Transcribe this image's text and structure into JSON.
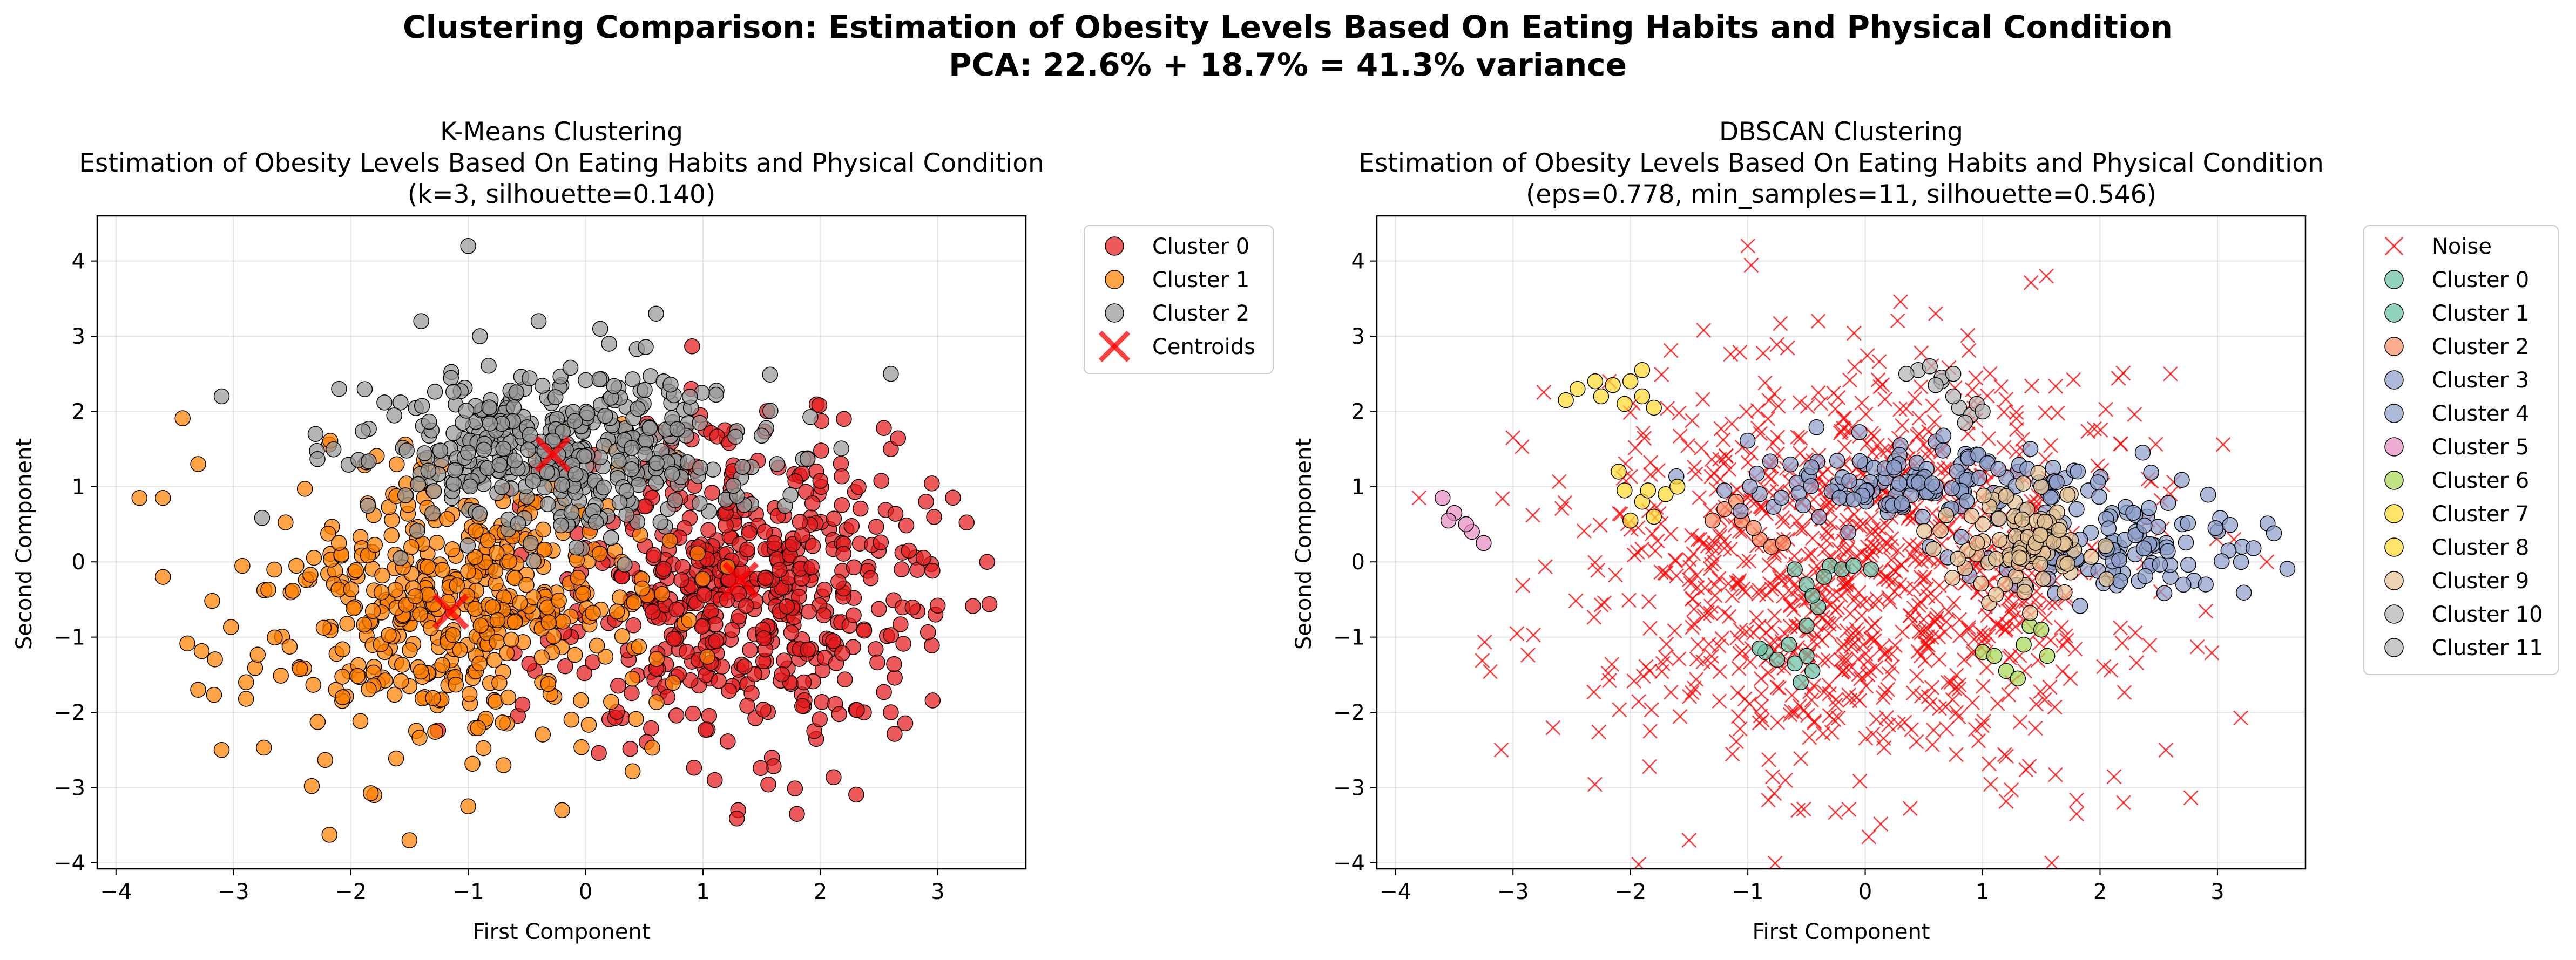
{
  "figure": {
    "title_line1": "Clustering Comparison: Estimation of Obesity Levels Based On Eating Habits and Physical Condition",
    "title_line2": "PCA: 22.6% + 18.7% = 41.3% variance"
  },
  "chart_data": [
    {
      "type": "scatter",
      "title": "K-Means Clustering",
      "subtitle": "Estimation of Obesity Levels Based On Eating Habits and Physical Condition",
      "params": "(k=3, silhouette=0.140)",
      "xlabel": "First Component",
      "ylabel": "Second Component",
      "xlim": [
        -4.16,
        3.75
      ],
      "ylim": [
        -4.08,
        4.6
      ],
      "xticks": [
        -4,
        -3,
        -2,
        -1,
        0,
        1,
        2,
        3
      ],
      "yticks": [
        -4,
        -3,
        -2,
        -1,
        0,
        1,
        2,
        3,
        4
      ],
      "grid": true,
      "legend_position": "outside-right-top",
      "series": [
        {
          "name": "Cluster 0",
          "color": "#e41a1c",
          "marker": "circle",
          "center": [
            1.35,
            -0.3
          ],
          "spread": [
            0.8,
            1.05
          ],
          "n": 520,
          "points": [
            [
              3.42,
              0.0
            ],
            [
              2.6,
              -2.0
            ],
            [
              2.98,
              -0.7
            ],
            [
              2.2,
              1.9
            ],
            [
              1.3,
              -3.3
            ],
            [
              1.8,
              -3.35
            ],
            [
              2.6,
              1.5
            ],
            [
              0.9,
              2.3
            ],
            [
              2.9,
              0.8
            ],
            [
              1.1,
              -2.9
            ]
          ]
        },
        {
          "name": "Cluster 1",
          "color": "#ff7f00",
          "marker": "circle",
          "center": [
            -1.15,
            -0.6
          ],
          "spread": [
            0.82,
            0.95
          ],
          "n": 470,
          "points": [
            [
              -3.8,
              0.85
            ],
            [
              -3.6,
              0.85
            ],
            [
              -3.1,
              -2.5
            ],
            [
              -1.5,
              -3.7
            ],
            [
              -1.0,
              -3.25
            ],
            [
              -1.8,
              -3.1
            ],
            [
              -0.2,
              -3.3
            ],
            [
              -3.3,
              1.3
            ],
            [
              -3.6,
              -0.2
            ],
            [
              -3.3,
              -1.7
            ]
          ]
        },
        {
          "name": "Cluster 2",
          "color": "#999999",
          "marker": "circle",
          "center": [
            -0.2,
            1.45
          ],
          "spread": [
            0.85,
            0.55
          ],
          "n": 430,
          "points": [
            [
              -1.0,
              4.2
            ],
            [
              -2.1,
              2.3
            ],
            [
              -1.4,
              3.2
            ],
            [
              -0.4,
              3.2
            ],
            [
              0.6,
              3.3
            ],
            [
              2.6,
              2.5
            ],
            [
              -3.1,
              2.2
            ],
            [
              -2.3,
              1.7
            ],
            [
              -0.9,
              3.0
            ],
            [
              0.2,
              2.9
            ]
          ]
        }
      ],
      "centroids": {
        "name": "Centroids",
        "color": "#ff0000",
        "marker": "x",
        "points": [
          [
            -0.28,
            1.43
          ],
          [
            1.32,
            -0.24
          ],
          [
            -1.15,
            -0.66
          ]
        ]
      }
    },
    {
      "type": "scatter",
      "title": "DBSCAN Clustering",
      "subtitle": "Estimation of Obesity Levels Based On Eating Habits and Physical Condition",
      "params": "(eps=0.778, min_samples=11, silhouette=0.546)",
      "xlabel": "First Component",
      "ylabel": "Second Component",
      "xlim": [
        -4.16,
        3.75
      ],
      "ylim": [
        -4.08,
        4.6
      ],
      "xticks": [
        -4,
        -3,
        -2,
        -1,
        0,
        1,
        2,
        3
      ],
      "yticks": [
        -4,
        -3,
        -2,
        -1,
        0,
        1,
        2,
        3,
        4
      ],
      "grid": true,
      "legend_position": "outside-right-top",
      "noise": {
        "name": "Noise",
        "color": "#ff0000",
        "marker": "x",
        "center": [
          0.0,
          -0.1
        ],
        "spread": [
          1.2,
          1.35
        ],
        "n": 1030,
        "points": [
          [
            -1.0,
            4.2
          ],
          [
            3.42,
            0.0
          ],
          [
            -1.5,
            -3.7
          ],
          [
            1.8,
            -3.35
          ],
          [
            2.6,
            2.5
          ],
          [
            -3.8,
            0.85
          ],
          [
            -3.1,
            -2.5
          ],
          [
            0.6,
            3.3
          ],
          [
            -0.4,
            3.2
          ],
          [
            2.2,
            -3.2
          ]
        ]
      },
      "clusters": [
        {
          "name": "Cluster 0",
          "color": "#66c2a5",
          "marker": "circle",
          "points": [
            [
              -0.6,
              -0.1
            ],
            [
              -0.5,
              -0.3
            ],
            [
              -0.3,
              -0.05
            ],
            [
              -0.4,
              -0.6
            ],
            [
              -0.5,
              -0.85
            ],
            [
              -0.2,
              -0.1
            ],
            [
              -0.1,
              -0.05
            ],
            [
              0.05,
              -0.1
            ],
            [
              -0.35,
              -0.2
            ],
            [
              -0.45,
              -0.45
            ]
          ]
        },
        {
          "name": "Cluster 1",
          "color": "#66c2a5",
          "marker": "circle",
          "points": [
            [
              -0.85,
              -1.2
            ],
            [
              -0.75,
              -1.3
            ],
            [
              -0.55,
              -1.6
            ],
            [
              -0.5,
              -1.25
            ],
            [
              -0.65,
              -1.1
            ],
            [
              -0.9,
              -1.15
            ],
            [
              -0.45,
              -1.45
            ],
            [
              -0.6,
              -1.35
            ]
          ]
        },
        {
          "name": "Cluster 2",
          "color": "#fc8d62",
          "marker": "circle",
          "points": [
            [
              -1.1,
              0.8
            ],
            [
              -1.05,
              0.55
            ],
            [
              -0.9,
              0.3
            ],
            [
              -1.3,
              0.55
            ],
            [
              -0.8,
              0.2
            ],
            [
              -0.95,
              0.45
            ],
            [
              -1.2,
              0.7
            ],
            [
              -0.7,
              0.25
            ]
          ]
        },
        {
          "name": "Cluster 3",
          "color": "#8da0cb",
          "marker": "circle",
          "center": [
            0.6,
            1.05
          ],
          "spread": [
            0.75,
            0.28
          ],
          "n": 140,
          "points": [
            [
              -1.2,
              0.95
            ],
            [
              -0.9,
              0.9
            ],
            [
              -0.5,
              1.15
            ],
            [
              0.0,
              1.3
            ],
            [
              0.3,
              1.55
            ],
            [
              0.6,
              1.6
            ],
            [
              0.9,
              1.1
            ],
            [
              1.3,
              1.2
            ],
            [
              1.6,
              1.25
            ],
            [
              1.9,
              0.95
            ]
          ]
        },
        {
          "name": "Cluster 4",
          "color": "#8da0cb",
          "marker": "circle",
          "center": [
            2.1,
            0.15
          ],
          "spread": [
            0.55,
            0.3
          ],
          "n": 95,
          "points": [
            [
              1.6,
              0.0
            ],
            [
              1.9,
              -0.1
            ],
            [
              2.3,
              0.1
            ],
            [
              2.6,
              -0.2
            ],
            [
              2.8,
              -0.25
            ],
            [
              2.9,
              -0.3
            ],
            [
              2.4,
              0.6
            ],
            [
              2.1,
              0.65
            ],
            [
              1.8,
              0.7
            ],
            [
              2.7,
              0.5
            ]
          ]
        },
        {
          "name": "Cluster 5",
          "color": "#e78ac3",
          "marker": "circle",
          "points": [
            [
              -3.6,
              0.85
            ],
            [
              -3.5,
              0.65
            ],
            [
              -3.35,
              0.4
            ],
            [
              -3.25,
              0.25
            ],
            [
              -3.55,
              0.55
            ],
            [
              -3.4,
              0.5
            ]
          ]
        },
        {
          "name": "Cluster 6",
          "color": "#a6d854",
          "marker": "circle",
          "points": [
            [
              1.0,
              -1.2
            ],
            [
              1.2,
              -1.45
            ],
            [
              1.3,
              -1.55
            ],
            [
              1.4,
              -0.85
            ],
            [
              1.5,
              -0.9
            ],
            [
              1.55,
              -1.25
            ],
            [
              1.35,
              -1.1
            ],
            [
              1.1,
              -1.25
            ]
          ]
        },
        {
          "name": "Cluster 7",
          "color": "#ffd92f",
          "marker": "circle",
          "points": [
            [
              -2.45,
              2.3
            ],
            [
              -2.3,
              2.4
            ],
            [
              -2.15,
              2.35
            ],
            [
              -2.05,
              2.1
            ],
            [
              -1.9,
              2.2
            ],
            [
              -1.8,
              2.05
            ],
            [
              -2.55,
              2.15
            ],
            [
              -2.25,
              2.2
            ],
            [
              -2.0,
              2.4
            ],
            [
              -1.9,
              2.55
            ]
          ]
        },
        {
          "name": "Cluster 8",
          "color": "#ffd92f",
          "marker": "circle",
          "points": [
            [
              -2.1,
              1.2
            ],
            [
              -2.05,
              0.95
            ],
            [
              -1.9,
              0.8
            ],
            [
              -1.8,
              0.6
            ],
            [
              -1.7,
              0.9
            ],
            [
              -1.6,
              1.0
            ],
            [
              -2.0,
              0.55
            ],
            [
              -1.85,
              0.95
            ]
          ]
        },
        {
          "name": "Cluster 9",
          "color": "#e5c494",
          "marker": "circle",
          "center": [
            1.35,
            0.25
          ],
          "spread": [
            0.3,
            0.35
          ],
          "n": 90,
          "points": [
            [
              1.0,
              0.5
            ],
            [
              1.2,
              0.25
            ],
            [
              1.4,
              0.0
            ],
            [
              1.6,
              0.6
            ],
            [
              1.75,
              0.9
            ],
            [
              1.15,
              0.9
            ],
            [
              1.5,
              1.0
            ],
            [
              1.3,
              0.5
            ],
            [
              0.95,
              0.1
            ],
            [
              1.65,
              0.3
            ]
          ]
        },
        {
          "name": "Cluster 10",
          "color": "#b3b3b3",
          "marker": "circle",
          "points": [
            [
              0.8,
              2.05
            ],
            [
              0.9,
              1.95
            ],
            [
              0.95,
              2.1
            ],
            [
              0.75,
              2.2
            ],
            [
              0.85,
              1.85
            ],
            [
              0.65,
              2.4
            ],
            [
              1.0,
              2.0
            ]
          ]
        },
        {
          "name": "Cluster 11",
          "color": "#b3b3b3",
          "marker": "circle",
          "points": [
            [
              0.45,
              2.55
            ],
            [
              0.65,
              2.45
            ],
            [
              0.55,
              2.6
            ],
            [
              0.75,
              2.5
            ],
            [
              0.6,
              2.35
            ],
            [
              0.35,
              2.5
            ]
          ]
        }
      ]
    }
  ]
}
